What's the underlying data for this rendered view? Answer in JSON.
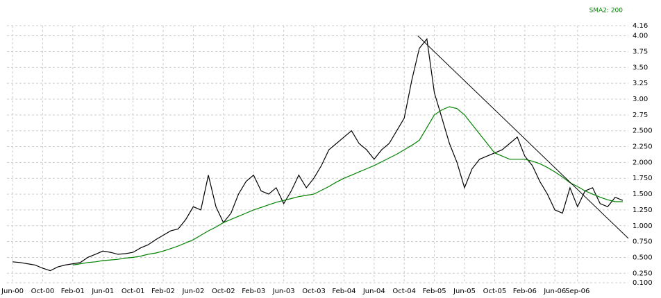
{
  "chart_data": {
    "type": "line",
    "x": [
      0,
      1,
      2,
      3,
      4,
      5,
      6,
      7,
      8,
      9,
      10,
      11,
      12,
      13,
      14,
      15,
      16,
      17,
      18,
      19,
      20,
      21,
      22,
      23,
      24,
      25,
      26,
      27,
      28,
      29,
      30,
      31,
      32,
      33,
      34,
      35,
      36,
      37,
      38,
      39,
      40,
      41,
      42,
      43,
      44,
      45,
      46,
      47,
      48,
      49,
      50,
      51,
      52,
      53,
      54,
      55,
      56,
      57,
      58,
      59,
      60,
      61,
      62,
      63,
      64,
      65,
      66,
      67,
      68,
      69,
      70,
      71,
      72,
      73,
      74,
      75,
      76,
      77,
      78,
      79,
      80,
      81
    ],
    "series": [
      {
        "color": "#000000",
        "values": [
          0.43,
          0.42,
          0.4,
          0.38,
          0.33,
          0.29,
          0.35,
          0.38,
          0.4,
          0.42,
          0.5,
          0.55,
          0.6,
          0.58,
          0.55,
          0.56,
          0.58,
          0.65,
          0.7,
          0.78,
          0.85,
          0.92,
          0.95,
          1.1,
          1.3,
          1.25,
          1.8,
          1.3,
          1.05,
          1.2,
          1.5,
          1.7,
          1.8,
          1.55,
          1.5,
          1.6,
          1.35,
          1.55,
          1.8,
          1.6,
          1.75,
          1.95,
          2.2,
          2.3,
          2.4,
          2.5,
          2.3,
          2.2,
          2.05,
          2.2,
          2.3,
          2.5,
          2.7,
          3.3,
          3.8,
          3.95,
          3.1,
          2.7,
          2.3,
          2.0,
          1.6,
          1.9,
          2.05,
          2.1,
          2.15,
          2.2,
          2.3,
          2.4,
          2.1,
          1.95,
          1.7,
          1.5,
          1.25,
          1.2,
          1.6,
          1.3,
          1.55,
          1.6,
          1.35,
          1.3,
          1.45,
          1.4
        ]
      },
      {
        "name": "SMA2: 200",
        "color": "#008000",
        "values": [
          null,
          null,
          null,
          null,
          null,
          null,
          null,
          null,
          0.38,
          0.4,
          0.42,
          0.43,
          0.45,
          0.46,
          0.47,
          0.49,
          0.5,
          0.52,
          0.55,
          0.57,
          0.6,
          0.64,
          0.68,
          0.73,
          0.78,
          0.85,
          0.92,
          0.98,
          1.05,
          1.1,
          1.15,
          1.2,
          1.25,
          1.29,
          1.33,
          1.37,
          1.4,
          1.43,
          1.46,
          1.48,
          1.5,
          1.56,
          1.62,
          1.69,
          1.75,
          1.8,
          1.85,
          1.9,
          1.95,
          2.01,
          2.07,
          2.13,
          2.2,
          2.27,
          2.35,
          2.55,
          2.75,
          2.83,
          2.88,
          2.85,
          2.75,
          2.6,
          2.45,
          2.3,
          2.15,
          2.1,
          2.05,
          2.05,
          2.05,
          2.02,
          1.98,
          1.92,
          1.85,
          1.77,
          1.68,
          1.62,
          1.55,
          1.5,
          1.45,
          1.41,
          1.38,
          1.38
        ]
      }
    ],
    "trendline": {
      "x": [
        53.8,
        81.75
      ],
      "y": [
        4.0,
        0.8
      ],
      "color": "#000000"
    },
    "xlim": [
      -0.74,
      81.75
    ],
    "xticks": [
      {
        "value": 0,
        "label": "Jun-00"
      },
      {
        "value": 4,
        "label": "Oct-00"
      },
      {
        "value": 8,
        "label": "Feb-01"
      },
      {
        "value": 12,
        "label": "Jun-01"
      },
      {
        "value": 16,
        "label": "Oct-01"
      },
      {
        "value": 20,
        "label": "Feb-02"
      },
      {
        "value": 24,
        "label": "Jun-02"
      },
      {
        "value": 28,
        "label": "Oct-02"
      },
      {
        "value": 32,
        "label": "Feb-03"
      },
      {
        "value": 36,
        "label": "Jun-03"
      },
      {
        "value": 40,
        "label": "Oct-03"
      },
      {
        "value": 44,
        "label": "Feb-04"
      },
      {
        "value": 48,
        "label": "Jun-04"
      },
      {
        "value": 52,
        "label": "Oct-04"
      },
      {
        "value": 56,
        "label": "Feb-05"
      },
      {
        "value": 60,
        "label": "Jun-05"
      },
      {
        "value": 64,
        "label": "Oct-05"
      },
      {
        "value": 68,
        "label": "Feb-06"
      },
      {
        "value": 72,
        "label": "Jun-06"
      },
      {
        "value": 75,
        "label": "Sep-06"
      }
    ],
    "ylim": [
      0.1,
      4.16
    ],
    "yticks": [
      {
        "value": 0.1,
        "label": "0.100"
      },
      {
        "value": 0.25,
        "label": "0.250"
      },
      {
        "value": 0.5,
        "label": "0.500"
      },
      {
        "value": 0.75,
        "label": "0.750"
      },
      {
        "value": 1,
        "label": "1.000"
      },
      {
        "value": 1.25,
        "label": "1.250"
      },
      {
        "value": 1.5,
        "label": "1.500"
      },
      {
        "value": 1.75,
        "label": "1.750"
      },
      {
        "value": 2,
        "label": "2.000"
      },
      {
        "value": 2.25,
        "label": "2.250"
      },
      {
        "value": 2.5,
        "label": "2.500"
      },
      2.75,
      {
        "value": 3,
        "label": "3.00"
      },
      3.25,
      {
        "value": 3.5,
        "label": "3.50"
      },
      3.75,
      {
        "value": 4,
        "label": "4.00"
      },
      4.16
    ],
    "grid": true
  }
}
